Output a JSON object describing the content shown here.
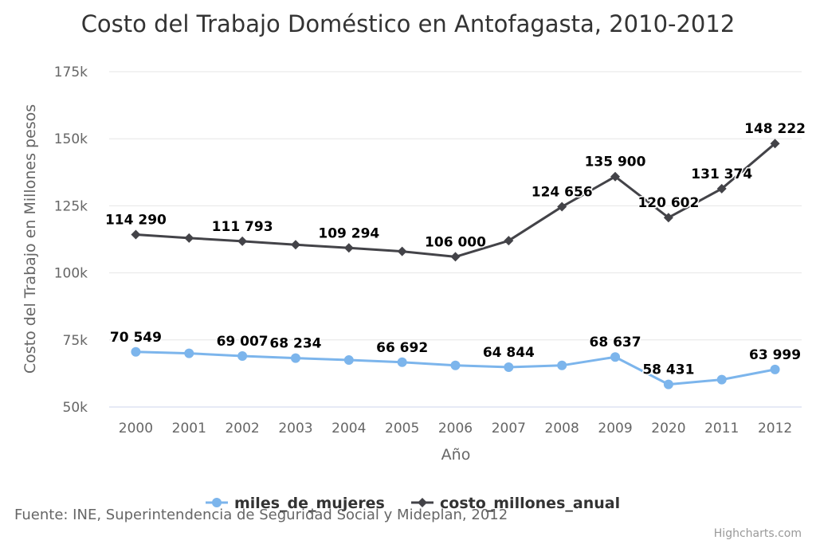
{
  "chart_data": {
    "type": "line",
    "title": "Costo del Trabajo Doméstico en Antofagasta, 2010-2012",
    "xlabel": "Año",
    "ylabel": "Costo del Trabajo en Millones pesos",
    "categories": [
      "2000",
      "2001",
      "2002",
      "2003",
      "2004",
      "2005",
      "2006",
      "2007",
      "2008",
      "2009",
      "2020",
      "2011",
      "2012"
    ],
    "y_ticks": [
      "50k",
      "75k",
      "100k",
      "125k",
      "150k",
      "175k"
    ],
    "ylim": [
      50000,
      175000
    ],
    "grid": true,
    "legend_position": "bottom",
    "series": [
      {
        "name": "miles_de_mujeres",
        "color": "#7cb5ec",
        "marker": "circle",
        "values": [
          70549,
          70000,
          69007,
          68234,
          67500,
          66692,
          65500,
          64844,
          65500,
          68637,
          58431,
          60200,
          63999
        ],
        "labels": [
          "70 549",
          "",
          "69 007",
          "68 234",
          "",
          "66 692",
          "",
          "64 844",
          "",
          "68 637",
          "58 431",
          "",
          "63 999"
        ]
      },
      {
        "name": "costo_millones_anual",
        "color": "#434348",
        "marker": "diamond",
        "values": [
          114290,
          113000,
          111793,
          110500,
          109294,
          108000,
          106000,
          112000,
          124656,
          135900,
          120602,
          131374,
          148222
        ],
        "labels": [
          "114 290",
          "",
          "111 793",
          "",
          "109 294",
          "",
          "106 000",
          "",
          "124 656",
          "135 900",
          "120 602",
          "131 374",
          "148 222"
        ]
      }
    ]
  },
  "source": "Fuente: INE, Superintendencia de Seguridad Social y Mideplan, 2012",
  "credits": "Highcharts.com"
}
